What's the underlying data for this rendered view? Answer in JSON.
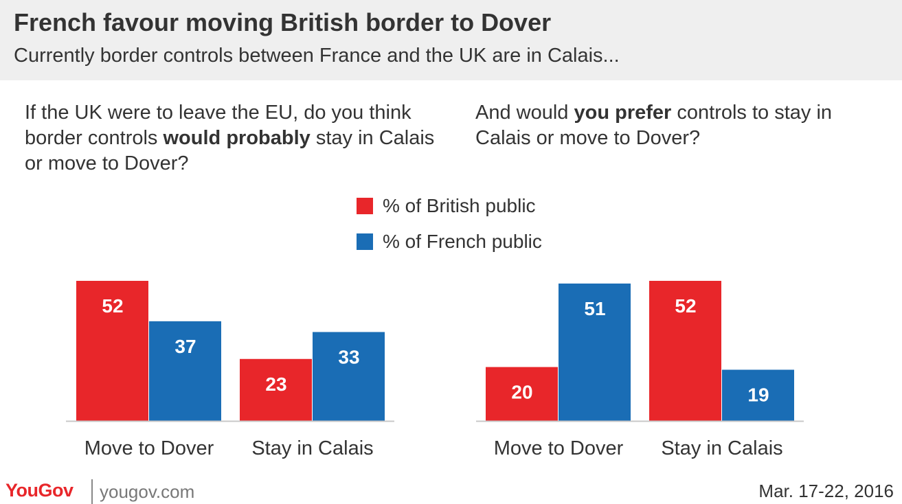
{
  "header": {
    "title": "French favour moving British border to Dover",
    "subtitle": "Currently border controls between France and the UK are in Calais..."
  },
  "questions": {
    "q1": {
      "before": "If the UK were to leave the EU, do you think border controls ",
      "emphasis": "would probably",
      "after": " stay in Calais or move to Dover?"
    },
    "q2": {
      "before": "And would ",
      "emphasis": "you prefer",
      "after": " controls to stay in Calais or move to Dover?"
    }
  },
  "legend": {
    "items": [
      {
        "label": "% of British public",
        "color": "#e8262a"
      },
      {
        "label": "% of French public",
        "color": "#1a6db5"
      }
    ]
  },
  "chart_data": [
    {
      "type": "bar",
      "categories": [
        "Move to Dover",
        "Stay in Calais"
      ],
      "series": [
        {
          "name": "% of British public",
          "values": [
            52,
            23
          ],
          "color": "#e8262a"
        },
        {
          "name": "% of French public",
          "values": [
            37,
            33
          ],
          "color": "#1a6db5"
        }
      ],
      "ylim": [
        0,
        52
      ],
      "grid": false,
      "legend": "top-center"
    },
    {
      "type": "bar",
      "categories": [
        "Move to Dover",
        "Stay in Calais"
      ],
      "series": [
        {
          "name": "% of British public",
          "values": [
            20,
            52
          ],
          "color": "#e8262a"
        },
        {
          "name": "% of French public",
          "values": [
            51,
            19
          ],
          "color": "#1a6db5"
        }
      ],
      "ylim": [
        0,
        52
      ],
      "grid": false,
      "legend": "top-center"
    }
  ],
  "footer": {
    "brand": "YouGov",
    "url": "yougov.com",
    "date": "Mar. 17-22, 2016"
  }
}
